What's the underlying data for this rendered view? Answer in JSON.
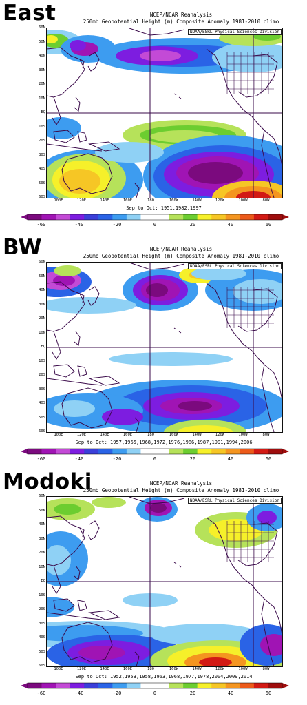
{
  "panels": [
    {
      "label": "East",
      "title": "NCEP/NCAR Reanalysis",
      "subtitle": "250mb Geopotential Height (m) Composite Anomaly 1981-2010 climo",
      "credit": "NOAA/ESRL Physical Sciences Division",
      "years": "Sep to Oct: 1951,1982,1997"
    },
    {
      "label": "BW",
      "title": "NCEP/NCAR Reanalysis",
      "subtitle": "250mb Geopotential Height (m) Composite Anomaly 1981-2010 climo",
      "credit": "NOAA/ESRL Physical Sciences Division",
      "years": "Sep to Oct: 1957,1965,1968,1972,1976,1986,1987,1991,1994,2006"
    },
    {
      "label": "Modoki",
      "title": "NCEP/NCAR Reanalysis",
      "subtitle": "250mb Geopotential Height (m) Composite Anomaly 1981-2010 climo",
      "credit": "NOAA/ESRL Physical Sciences Division",
      "years": "Sep to Oct: 1952,1953,1958,1963,1968,1977,1978,2004,2009,2014"
    }
  ],
  "lat_labels": [
    "60N",
    "50N",
    "40N",
    "30N",
    "20N",
    "10N",
    "EQ",
    "10S",
    "20S",
    "30S",
    "40S",
    "50S",
    "60S"
  ],
  "lon_labels": [
    "100E",
    "120E",
    "140E",
    "160E",
    "180",
    "160W",
    "140W",
    "120W",
    "100W",
    "80W"
  ],
  "colorbar": {
    "labels": [
      "-60",
      "-40",
      "-20",
      "0",
      "20",
      "40",
      "60"
    ],
    "colors": [
      "#7b0a7e",
      "#a014b4",
      "#c34ad6",
      "#7d1de0",
      "#3b3fd9",
      "#2a63e6",
      "#3d9cf0",
      "#8fd1f5",
      "#ffffff",
      "#ffffff",
      "#b6e25a",
      "#6ccd30",
      "#f6f02a",
      "#f6c625",
      "#f49520",
      "#ec5a1a",
      "#d21a14",
      "#9e0d0d"
    ]
  },
  "map": {
    "region": "60S-60N, 90E-70W",
    "contour_fill": "anomaly shading (purple/blue negative, green/yellow/orange positive)",
    "overlay": "coastlines, US state boundaries, equator and 180 meridian lines"
  }
}
